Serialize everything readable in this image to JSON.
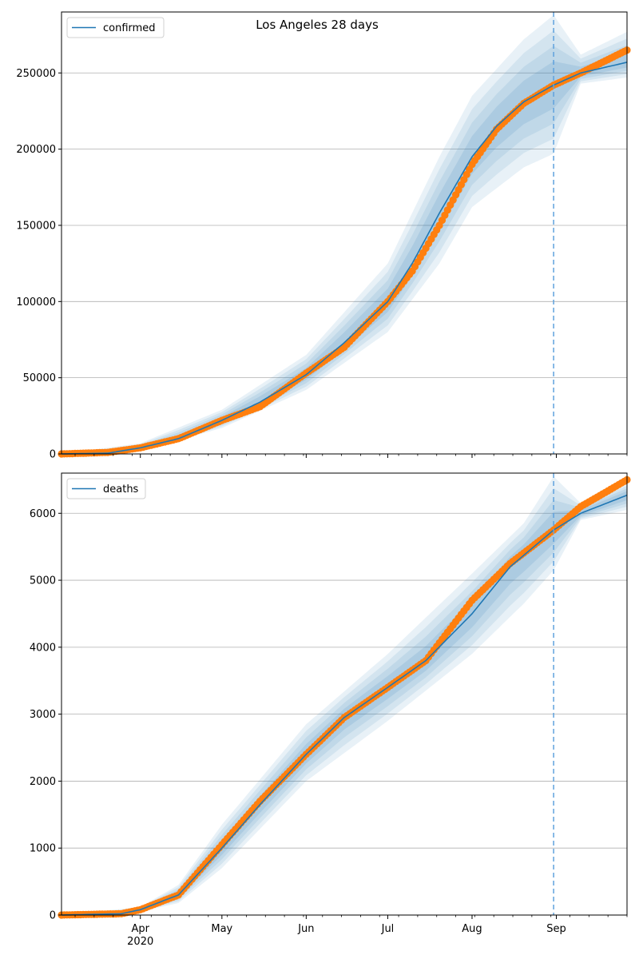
{
  "figure_title": "Los Angeles 28 days",
  "colors": {
    "model": "#1f77b4",
    "observed": "#ff7f0e",
    "band": "#1f77b4",
    "grid": "#b0b0b0",
    "forecast_line": "#5fa2dd"
  },
  "chart_data": [
    {
      "type": "line",
      "legend": "confirmed",
      "legend_position": "top-left",
      "grid": "y",
      "x_axis": {
        "type": "date",
        "range": [
          "2020-03-03",
          "2020-09-27"
        ],
        "tick_labels": [
          {
            "date": "2020-04-01",
            "label": "Apr",
            "sub": "2020"
          },
          {
            "date": "2020-05-01",
            "label": "May"
          },
          {
            "date": "2020-06-01",
            "label": "Jun"
          },
          {
            "date": "2020-07-01",
            "label": "Jul"
          },
          {
            "date": "2020-08-01",
            "label": "Aug"
          },
          {
            "date": "2020-09-01",
            "label": "Sep"
          }
        ],
        "labels_shown": false
      },
      "y_axis": {
        "range": [
          0,
          290000
        ],
        "ticks": [
          0,
          50000,
          100000,
          150000,
          200000,
          250000
        ]
      },
      "forecast_start": "2020-08-31",
      "model_line": {
        "name": "confirmed",
        "points": [
          [
            "2020-03-03",
            0
          ],
          [
            "2020-03-20",
            500
          ],
          [
            "2020-04-01",
            4000
          ],
          [
            "2020-04-15",
            10000
          ],
          [
            "2020-05-01",
            22000
          ],
          [
            "2020-05-15",
            34000
          ],
          [
            "2020-06-01",
            52000
          ],
          [
            "2020-06-15",
            73000
          ],
          [
            "2020-07-01",
            100000
          ],
          [
            "2020-07-10",
            125000
          ],
          [
            "2020-07-20",
            158000
          ],
          [
            "2020-08-01",
            195000
          ],
          [
            "2020-08-10",
            215000
          ],
          [
            "2020-08-20",
            231000
          ],
          [
            "2020-08-31",
            242000
          ],
          [
            "2020-09-10",
            250000
          ],
          [
            "2020-09-27",
            257000
          ]
        ]
      },
      "observed": {
        "name": "observed",
        "points": [
          [
            "2020-03-03",
            0
          ],
          [
            "2020-03-20",
            1000
          ],
          [
            "2020-04-01",
            4000
          ],
          [
            "2020-04-15",
            10000
          ],
          [
            "2020-05-01",
            22000
          ],
          [
            "2020-05-15",
            31000
          ],
          [
            "2020-06-01",
            53000
          ],
          [
            "2020-06-15",
            70000
          ],
          [
            "2020-07-01",
            100000
          ],
          [
            "2020-07-10",
            120000
          ],
          [
            "2020-07-20",
            150000
          ],
          [
            "2020-08-01",
            190000
          ],
          [
            "2020-08-10",
            213000
          ],
          [
            "2020-08-20",
            230000
          ],
          [
            "2020-08-31",
            242000
          ],
          [
            "2020-09-10",
            250000
          ],
          [
            "2020-09-27",
            265000
          ]
        ]
      },
      "band": {
        "points": [
          [
            "2020-03-03",
            0,
            0
          ],
          [
            "2020-04-01",
            2000,
            7000
          ],
          [
            "2020-05-01",
            17000,
            29000
          ],
          [
            "2020-06-01",
            42000,
            65000
          ],
          [
            "2020-07-01",
            80000,
            125000
          ],
          [
            "2020-07-20",
            125000,
            195000
          ],
          [
            "2020-08-01",
            162000,
            235000
          ],
          [
            "2020-08-20",
            188000,
            272000
          ],
          [
            "2020-08-31",
            197000,
            288000
          ],
          [
            "2020-09-10",
            243000,
            262000
          ],
          [
            "2020-09-27",
            247000,
            277000
          ]
        ]
      }
    },
    {
      "type": "line",
      "legend": "deaths",
      "legend_position": "top-left",
      "grid": "y",
      "x_axis": {
        "type": "date",
        "range": [
          "2020-03-03",
          "2020-09-27"
        ],
        "tick_labels": [
          {
            "date": "2020-04-01",
            "label": "Apr",
            "sub": "2020"
          },
          {
            "date": "2020-05-01",
            "label": "May"
          },
          {
            "date": "2020-06-01",
            "label": "Jun"
          },
          {
            "date": "2020-07-01",
            "label": "Jul"
          },
          {
            "date": "2020-08-01",
            "label": "Aug"
          },
          {
            "date": "2020-09-01",
            "label": "Sep"
          }
        ],
        "labels_shown": true
      },
      "y_axis": {
        "range": [
          0,
          6600
        ],
        "ticks": [
          0,
          1000,
          2000,
          3000,
          4000,
          5000,
          6000
        ]
      },
      "forecast_start": "2020-08-31",
      "model_line": {
        "name": "deaths",
        "points": [
          [
            "2020-03-03",
            0
          ],
          [
            "2020-03-25",
            20
          ],
          [
            "2020-04-01",
            80
          ],
          [
            "2020-04-15",
            300
          ],
          [
            "2020-05-01",
            1000
          ],
          [
            "2020-05-15",
            1650
          ],
          [
            "2020-06-01",
            2400
          ],
          [
            "2020-06-15",
            2950
          ],
          [
            "2020-07-01",
            3400
          ],
          [
            "2020-07-15",
            3800
          ],
          [
            "2020-08-01",
            4500
          ],
          [
            "2020-08-15",
            5200
          ],
          [
            "2020-08-31",
            5750
          ],
          [
            "2020-09-10",
            6000
          ],
          [
            "2020-09-27",
            6270
          ]
        ]
      },
      "observed": {
        "name": "observed",
        "points": [
          [
            "2020-03-03",
            0
          ],
          [
            "2020-03-25",
            20
          ],
          [
            "2020-04-01",
            80
          ],
          [
            "2020-04-15",
            300
          ],
          [
            "2020-05-01",
            1050
          ],
          [
            "2020-05-15",
            1700
          ],
          [
            "2020-06-01",
            2400
          ],
          [
            "2020-06-15",
            2950
          ],
          [
            "2020-07-01",
            3400
          ],
          [
            "2020-07-15",
            3800
          ],
          [
            "2020-08-01",
            4700
          ],
          [
            "2020-08-15",
            5250
          ],
          [
            "2020-08-31",
            5750
          ],
          [
            "2020-09-10",
            6100
          ],
          [
            "2020-09-27",
            6500
          ]
        ]
      },
      "band": {
        "points": [
          [
            "2020-03-03",
            0,
            0
          ],
          [
            "2020-04-01",
            50,
            120
          ],
          [
            "2020-04-15",
            180,
            450
          ],
          [
            "2020-05-01",
            700,
            1350
          ],
          [
            "2020-06-01",
            2000,
            2850
          ],
          [
            "2020-07-01",
            2900,
            3900
          ],
          [
            "2020-08-01",
            3900,
            5100
          ],
          [
            "2020-08-20",
            4650,
            5850
          ],
          [
            "2020-08-31",
            5150,
            6550
          ],
          [
            "2020-09-10",
            5900,
            6150
          ],
          [
            "2020-09-27",
            6050,
            6450
          ]
        ]
      }
    }
  ]
}
